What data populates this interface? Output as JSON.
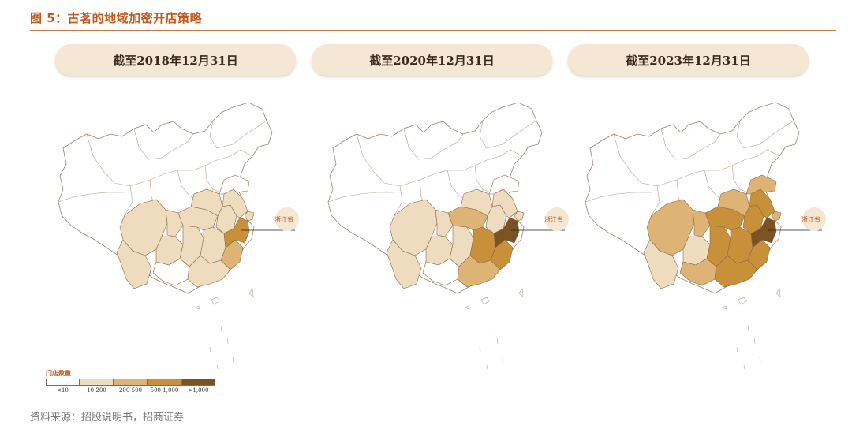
{
  "figure_title": "图 5：古茗的地域加密开店策略",
  "source": "资料来源：招股说明书，招商证券",
  "panels": [
    {
      "label": "截至2018年12月31日",
      "levels": {
        "sichuan": 1,
        "chongqing": 1,
        "yunnan": 1,
        "guizhou": 1,
        "guangxi": 0,
        "hunan": 1,
        "hubei": 1,
        "henan": 1,
        "anhui": 1,
        "jiangsu": 1,
        "jiangxi": 1,
        "fujian": 2,
        "guangdong": 1,
        "zhejiang": 3,
        "shanghai": 1,
        "shandong": 0
      }
    },
    {
      "label": "截至2020年12月31日",
      "levels": {
        "sichuan": 1,
        "chongqing": 1,
        "yunnan": 1,
        "guizhou": 1,
        "guangxi": 0,
        "hunan": 1,
        "hubei": 2,
        "henan": 1,
        "anhui": 1,
        "jiangsu": 1,
        "jiangxi": 3,
        "fujian": 3,
        "guangdong": 2,
        "zhejiang": 4,
        "shanghai": 1,
        "shandong": 0
      }
    },
    {
      "label": "截至2023年12月31日",
      "levels": {
        "sichuan": 2,
        "chongqing": 2,
        "yunnan": 1,
        "guizhou": 1,
        "guangxi": 2,
        "hunan": 3,
        "hubei": 3,
        "henan": 2,
        "anhui": 3,
        "jiangsu": 3,
        "jiangxi": 3,
        "fujian": 3,
        "guangdong": 3,
        "zhejiang": 4,
        "shanghai": 2,
        "shandong": 2
      }
    }
  ],
  "callout": "浙江省",
  "legend": {
    "title": "门店数量",
    "items": [
      {
        "label": "<10",
        "color": "#ffffff"
      },
      {
        "label": "10-200",
        "color": "#efdcbf"
      },
      {
        "label": "200-500",
        "color": "#deb476"
      },
      {
        "label": "500-1,000",
        "color": "#c89038"
      },
      {
        "label": ">1,000",
        "color": "#7a5224"
      }
    ]
  }
}
